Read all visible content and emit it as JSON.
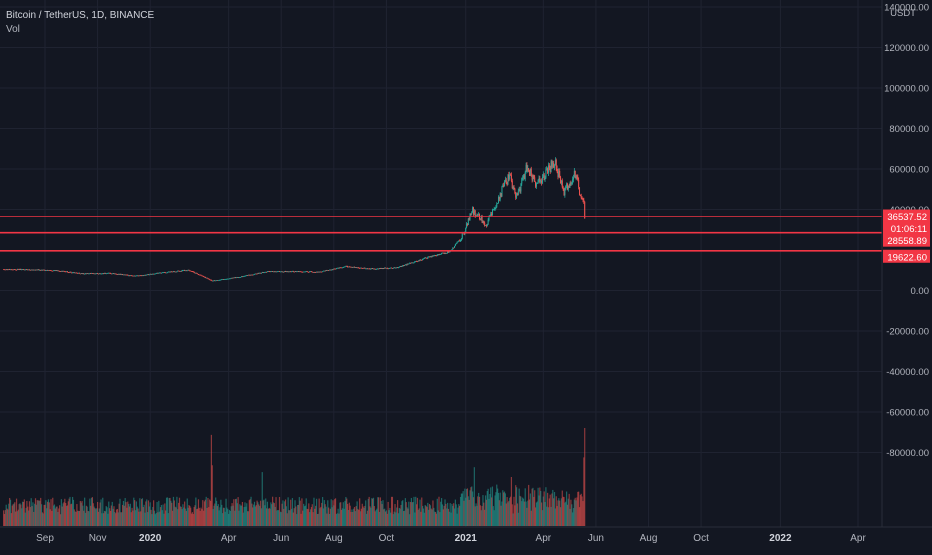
{
  "chart_data": {
    "type": "candlestick",
    "title": "Bitcoin / TetherUS, 1D, BINANCE",
    "volume_label": "Vol",
    "price_unit": "USDT",
    "ylim": [
      -100000,
      140000
    ],
    "y_ticks": [
      140000,
      120000,
      100000,
      80000,
      60000,
      40000,
      0,
      -20000,
      -40000,
      -60000,
      -80000
    ],
    "y_tick_labels": [
      "140000.00",
      "120000.00",
      "100000.00",
      "80000.00",
      "60000.00",
      "40000.00",
      "0.00",
      "-20000.00",
      "-40000.00",
      "-60000.00",
      "-80000.00"
    ],
    "x_ticks": [
      {
        "date": "2019-09",
        "label": "Sep",
        "bold": false
      },
      {
        "date": "2019-11",
        "label": "Nov",
        "bold": false
      },
      {
        "date": "2020-01",
        "label": "2020",
        "bold": true
      },
      {
        "date": "2020-04",
        "label": "Apr",
        "bold": false
      },
      {
        "date": "2020-06",
        "label": "Jun",
        "bold": false
      },
      {
        "date": "2020-08",
        "label": "Aug",
        "bold": false
      },
      {
        "date": "2020-10",
        "label": "Oct",
        "bold": false
      },
      {
        "date": "2021-01",
        "label": "2021",
        "bold": true
      },
      {
        "date": "2021-04",
        "label": "Apr",
        "bold": false
      },
      {
        "date": "2021-06",
        "label": "Jun",
        "bold": false
      },
      {
        "date": "2021-08",
        "label": "Aug",
        "bold": false
      },
      {
        "date": "2021-10",
        "label": "Oct",
        "bold": false
      },
      {
        "date": "2022-01",
        "label": "2022",
        "bold": true
      },
      {
        "date": "2022-04",
        "label": "Apr",
        "bold": false
      }
    ],
    "price_path": [
      {
        "date": "2019-07-15",
        "price": 10500
      },
      {
        "date": "2019-08-15",
        "price": 10300
      },
      {
        "date": "2019-09-15",
        "price": 9800
      },
      {
        "date": "2019-10-15",
        "price": 8300
      },
      {
        "date": "2019-11-15",
        "price": 8500
      },
      {
        "date": "2019-12-15",
        "price": 7200
      },
      {
        "date": "2020-01-15",
        "price": 8800
      },
      {
        "date": "2020-02-15",
        "price": 10100
      },
      {
        "date": "2020-03-13",
        "price": 4800
      },
      {
        "date": "2020-04-15",
        "price": 6800
      },
      {
        "date": "2020-05-15",
        "price": 9300
      },
      {
        "date": "2020-06-15",
        "price": 9400
      },
      {
        "date": "2020-07-15",
        "price": 9200
      },
      {
        "date": "2020-08-15",
        "price": 11800
      },
      {
        "date": "2020-09-15",
        "price": 10700
      },
      {
        "date": "2020-10-15",
        "price": 11400
      },
      {
        "date": "2020-11-15",
        "price": 16000
      },
      {
        "date": "2020-12-15",
        "price": 19400
      },
      {
        "date": "2020-12-31",
        "price": 29000
      },
      {
        "date": "2021-01-08",
        "price": 40000
      },
      {
        "date": "2021-01-25",
        "price": 32000
      },
      {
        "date": "2021-02-08",
        "price": 46000
      },
      {
        "date": "2021-02-21",
        "price": 57000
      },
      {
        "date": "2021-02-28",
        "price": 45000
      },
      {
        "date": "2021-03-13",
        "price": 61000
      },
      {
        "date": "2021-03-25",
        "price": 52000
      },
      {
        "date": "2021-04-14",
        "price": 63500
      },
      {
        "date": "2021-04-25",
        "price": 49000
      },
      {
        "date": "2021-05-09",
        "price": 58000
      },
      {
        "date": "2021-05-13",
        "price": 49000
      },
      {
        "date": "2021-05-18",
        "price": 42000
      },
      {
        "date": "2021-05-19",
        "price": 36537.52
      }
    ],
    "volume_spikes": [
      {
        "date": "2020-03-12",
        "level": 0.93
      },
      {
        "date": "2020-03-13",
        "level": 0.62
      },
      {
        "date": "2020-05-10",
        "level": 0.55
      },
      {
        "date": "2021-01-11",
        "level": 0.6
      },
      {
        "date": "2021-02-23",
        "level": 0.5
      },
      {
        "date": "2021-05-19",
        "level": 1.0
      },
      {
        "date": "2021-05-18",
        "level": 0.7
      }
    ],
    "horizontal_lines": [
      {
        "price": 36537.52,
        "label": "36537.52",
        "style": "thin"
      },
      {
        "price": 28558.89,
        "label": "28558.89",
        "style": "thick"
      },
      {
        "price": 19622.6,
        "label": "19622.60",
        "style": "thick"
      }
    ],
    "countdown_label": "01:06:11",
    "colors": {
      "background": "#131722",
      "grid": "#1f2331",
      "up": "#26a69a",
      "down": "#ef5350",
      "level_line": "#f23645",
      "text": "#b2b5be"
    }
  }
}
